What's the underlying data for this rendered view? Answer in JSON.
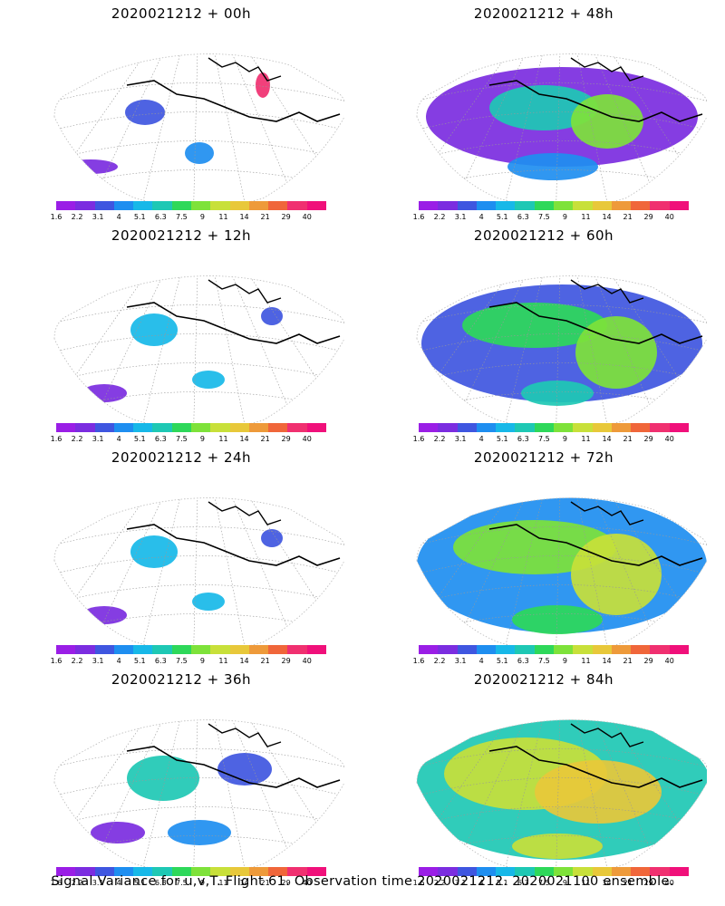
{
  "panels": [
    {
      "title": "2020021212 + 00h",
      "level": 0
    },
    {
      "title": "2020021212 + 48h",
      "level": 3
    },
    {
      "title": "2020021212 + 12h",
      "level": 1
    },
    {
      "title": "2020021212 + 60h",
      "level": 4
    },
    {
      "title": "2020021212 + 24h",
      "level": 1
    },
    {
      "title": "2020021212 + 72h",
      "level": 5
    },
    {
      "title": "2020021212 + 36h",
      "level": 2
    },
    {
      "title": "2020021212 + 84h",
      "level": 6
    }
  ],
  "colorbar": {
    "labels": [
      "1.6",
      "2.2",
      "3.1",
      "4",
      "5.1",
      "6.3",
      "7.5",
      "9",
      "11",
      "14",
      "21",
      "29",
      "40"
    ],
    "colors": [
      "#9a1ee6",
      "#7b2de0",
      "#3f56e0",
      "#1e8ef0",
      "#17b8e8",
      "#1ec8b4",
      "#2ed85a",
      "#7ee23a",
      "#c8e03a",
      "#e8c83a",
      "#ee9a3a",
      "#f0663a",
      "#f03070",
      "#f0107a"
    ]
  },
  "caption": "Signal Variance for u,v,T. Flight 61. Observation time 2020021212. 2020021100 ensemble."
}
